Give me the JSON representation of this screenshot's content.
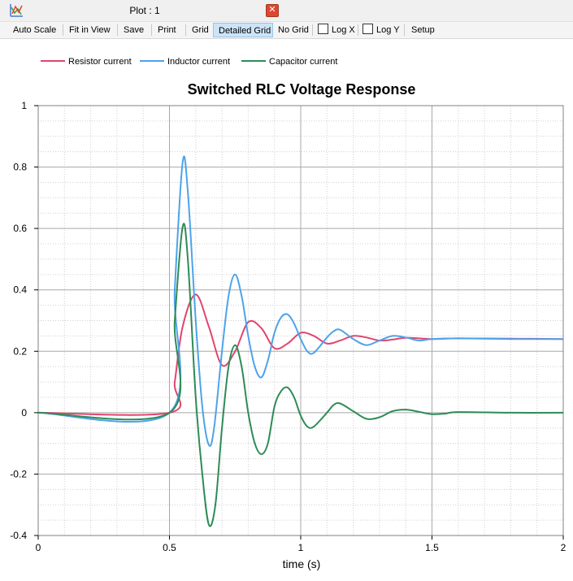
{
  "window": {
    "title": "Plot : 1",
    "close_glyph": "✕"
  },
  "toolbar": {
    "items": [
      {
        "label": "Auto Scale",
        "active": true
      },
      {
        "label": "Fit in View",
        "active": false
      },
      {
        "label": "Save",
        "active": false
      },
      {
        "label": "Print",
        "active": false
      },
      {
        "label": "Grid",
        "active": false
      },
      {
        "label": "Detailed Grid",
        "active": true
      },
      {
        "label": "No Grid",
        "active": false
      },
      {
        "label": "Log X",
        "checkbox": true,
        "checked": false
      },
      {
        "label": "Log Y",
        "checkbox": true,
        "checked": false
      },
      {
        "label": "Setup",
        "active": false
      }
    ]
  },
  "chart_data": {
    "type": "line",
    "title": "Switched RLC Voltage Response",
    "xlabel": "time (s)",
    "ylabel": "",
    "xlim": [
      0,
      2
    ],
    "ylim": [
      -0.4,
      1
    ],
    "x_ticks": [
      "0",
      "0.5",
      "1",
      "1.5",
      "2"
    ],
    "y_ticks": [
      "-0.4",
      "-0.2",
      "0",
      "0.2",
      "0.4",
      "0.6",
      "0.8",
      "1"
    ],
    "grid": "detailed",
    "legend_position": "top-left",
    "series": [
      {
        "name": "Resistor current",
        "color": "#e0456e",
        "x": [
          0,
          0.5,
          0.52,
          0.55,
          0.6,
          0.65,
          0.7,
          0.75,
          0.8,
          0.85,
          0.9,
          0.95,
          1.0,
          1.05,
          1.1,
          1.15,
          1.2,
          1.25,
          1.3,
          1.35,
          1.4,
          1.5,
          1.6,
          1.8,
          2.0
        ],
        "values": [
          0,
          0,
          0.1,
          0.28,
          0.385,
          0.28,
          0.155,
          0.2,
          0.295,
          0.275,
          0.21,
          0.225,
          0.26,
          0.25,
          0.225,
          0.235,
          0.25,
          0.245,
          0.235,
          0.238,
          0.244,
          0.24,
          0.242,
          0.241,
          0.24
        ]
      },
      {
        "name": "Inductor current",
        "color": "#4da3ea",
        "x": [
          0,
          0.5,
          0.52,
          0.55,
          0.57,
          0.6,
          0.625,
          0.65,
          0.67,
          0.7,
          0.725,
          0.75,
          0.775,
          0.8,
          0.825,
          0.85,
          0.875,
          0.9,
          0.925,
          0.95,
          0.975,
          1.0,
          1.025,
          1.05,
          1.1,
          1.125,
          1.15,
          1.2,
          1.25,
          1.3,
          1.35,
          1.4,
          1.45,
          1.5,
          1.6,
          1.8,
          2.0
        ],
        "values": [
          0,
          0,
          0.4,
          0.815,
          0.72,
          0.3,
          0.02,
          -0.105,
          -0.05,
          0.2,
          0.38,
          0.45,
          0.38,
          0.25,
          0.15,
          0.115,
          0.17,
          0.26,
          0.31,
          0.32,
          0.29,
          0.24,
          0.2,
          0.195,
          0.245,
          0.265,
          0.27,
          0.24,
          0.22,
          0.235,
          0.25,
          0.245,
          0.235,
          0.24,
          0.242,
          0.24,
          0.24
        ]
      },
      {
        "name": "Capacitor current",
        "color": "#2e8b57",
        "x": [
          0,
          0.5,
          0.52,
          0.55,
          0.57,
          0.6,
          0.625,
          0.65,
          0.675,
          0.7,
          0.725,
          0.75,
          0.775,
          0.8,
          0.825,
          0.85,
          0.875,
          0.9,
          0.925,
          0.95,
          0.975,
          1.0,
          1.025,
          1.05,
          1.1,
          1.125,
          1.15,
          1.2,
          1.25,
          1.3,
          1.35,
          1.4,
          1.45,
          1.5,
          1.55,
          1.6,
          1.8,
          2.0
        ],
        "values": [
          0,
          0,
          0.3,
          0.605,
          0.5,
          0.05,
          -0.2,
          -0.365,
          -0.3,
          -0.05,
          0.15,
          0.22,
          0.15,
          0.0,
          -0.1,
          -0.135,
          -0.1,
          0.02,
          0.07,
          0.082,
          0.05,
          -0.01,
          -0.045,
          -0.045,
          0.0,
          0.025,
          0.03,
          0.005,
          -0.02,
          -0.015,
          0.005,
          0.01,
          0.003,
          -0.005,
          -0.003,
          0.002,
          0.0,
          0.0
        ]
      }
    ]
  }
}
